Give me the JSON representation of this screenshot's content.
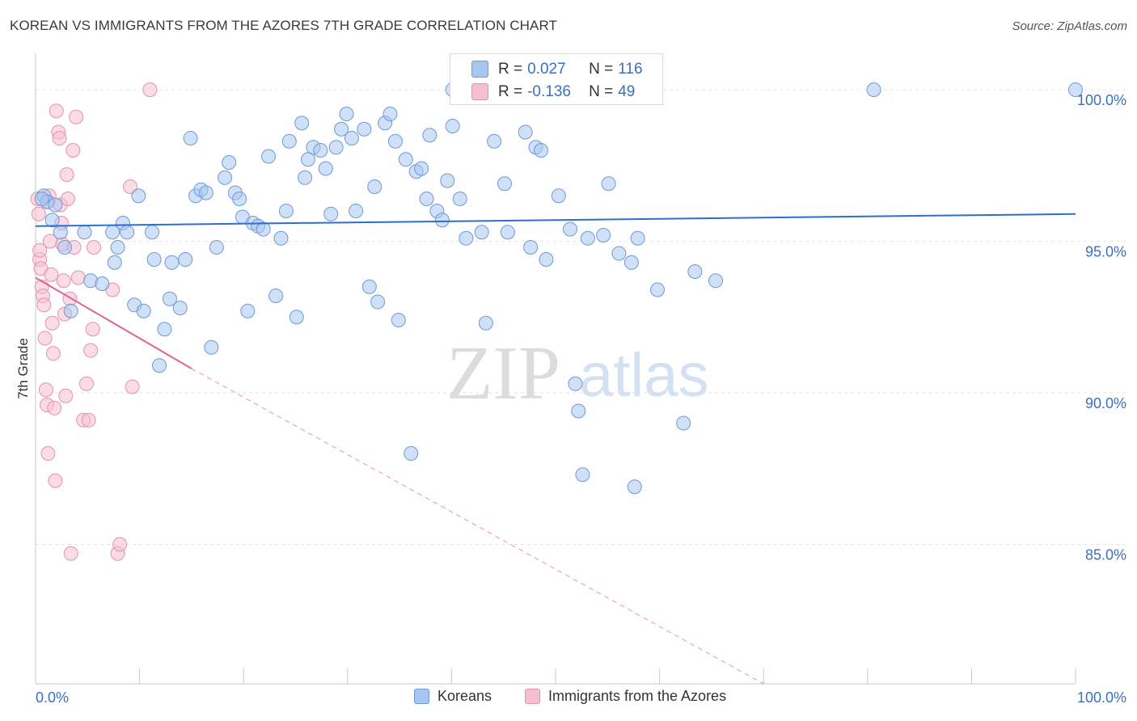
{
  "header": {
    "title": "KOREAN VS IMMIGRANTS FROM THE AZORES 7TH GRADE CORRELATION CHART",
    "source": "Source: ZipAtlas.com"
  },
  "watermark": {
    "zip": "ZIP",
    "atlas": "atlas"
  },
  "stats_legend": {
    "rows": [
      {
        "r_label": "R =",
        "r_value": "0.027",
        "n_label": "N =",
        "n_value": "116",
        "color": "#8fb4e8"
      },
      {
        "r_label": "R =",
        "r_value": "-0.136",
        "n_label": "N =",
        "n_value": "49",
        "color": "#f2a6bf"
      }
    ]
  },
  "bottom_legend": {
    "items": [
      {
        "label": "Koreans",
        "color": "#8fb4e8"
      },
      {
        "label": "Immigrants from the Azores",
        "color": "#f2a6bf"
      }
    ]
  },
  "colors": {
    "blue_fill": "#a9c6ee",
    "blue_stroke": "#6e9ad8",
    "blue_line": "#2f6fc9",
    "pink_fill": "#f6bfd1",
    "pink_stroke": "#e890ae",
    "pink_line": "#e0648e",
    "tick_label": "#3b6fc4",
    "grid": "#e3e3e3"
  },
  "chart_data": {
    "type": "scatter",
    "title": "KOREAN VS IMMIGRANTS FROM THE AZORES 7TH GRADE CORRELATION CHART",
    "xlabel": "",
    "ylabel": "7th Grade",
    "xlim": [
      0,
      100
    ],
    "ylim": [
      80.4,
      101.2
    ],
    "x_tick_labels": [
      "0.0%",
      "100.0%"
    ],
    "y_ticks": [
      85,
      90,
      95,
      100
    ],
    "y_tick_labels": [
      "85.0%",
      "90.0%",
      "95.0%",
      "100.0%"
    ],
    "grid": true,
    "legend_position": "bottom",
    "series": [
      {
        "name": "Koreans",
        "trend": {
          "x": [
            0,
            100
          ],
          "y": [
            95.5,
            95.9
          ],
          "dashed": false
        },
        "points": [
          [
            0.8,
            96.5
          ],
          [
            1.1,
            96.3
          ],
          [
            1.6,
            95.7
          ],
          [
            2.4,
            95.3
          ],
          [
            2.8,
            94.8
          ],
          [
            3.4,
            92.7
          ],
          [
            4.7,
            95.3
          ],
          [
            5.3,
            93.7
          ],
          [
            6.4,
            93.6
          ],
          [
            7.4,
            95.3
          ],
          [
            7.6,
            94.3
          ],
          [
            7.9,
            94.8
          ],
          [
            8.4,
            95.6
          ],
          [
            8.8,
            95.3
          ],
          [
            9.5,
            92.9
          ],
          [
            9.9,
            96.5
          ],
          [
            10.4,
            92.7
          ],
          [
            11.2,
            95.3
          ],
          [
            11.4,
            94.4
          ],
          [
            11.9,
            90.9
          ],
          [
            12.4,
            92.1
          ],
          [
            12.9,
            93.1
          ],
          [
            13.1,
            94.3
          ],
          [
            13.9,
            92.8
          ],
          [
            14.4,
            94.4
          ],
          [
            14.9,
            98.4
          ],
          [
            15.4,
            96.5
          ],
          [
            15.9,
            96.7
          ],
          [
            16.4,
            96.6
          ],
          [
            16.9,
            91.5
          ],
          [
            17.4,
            94.8
          ],
          [
            18.2,
            97.1
          ],
          [
            18.6,
            97.6
          ],
          [
            19.2,
            96.6
          ],
          [
            19.6,
            96.4
          ],
          [
            19.9,
            95.8
          ],
          [
            20.4,
            92.7
          ],
          [
            20.9,
            95.6
          ],
          [
            21.4,
            95.5
          ],
          [
            21.9,
            95.4
          ],
          [
            22.4,
            97.8
          ],
          [
            23.1,
            93.2
          ],
          [
            23.6,
            95.1
          ],
          [
            24.1,
            96.0
          ],
          [
            24.4,
            98.3
          ],
          [
            25.1,
            92.5
          ],
          [
            25.6,
            98.9
          ],
          [
            25.9,
            97.1
          ],
          [
            26.2,
            97.7
          ],
          [
            26.7,
            98.1
          ],
          [
            27.4,
            98.0
          ],
          [
            27.9,
            97.4
          ],
          [
            28.4,
            95.9
          ],
          [
            28.9,
            98.1
          ],
          [
            29.4,
            98.7
          ],
          [
            29.9,
            99.2
          ],
          [
            30.4,
            98.4
          ],
          [
            30.8,
            96.0
          ],
          [
            31.6,
            98.7
          ],
          [
            32.1,
            93.5
          ],
          [
            32.6,
            96.8
          ],
          [
            32.9,
            93.0
          ],
          [
            33.6,
            98.9
          ],
          [
            34.1,
            99.2
          ],
          [
            34.6,
            98.3
          ],
          [
            34.9,
            92.4
          ],
          [
            35.6,
            97.7
          ],
          [
            36.1,
            88.0
          ],
          [
            36.6,
            97.3
          ],
          [
            37.1,
            97.4
          ],
          [
            37.6,
            96.4
          ],
          [
            37.9,
            98.5
          ],
          [
            38.6,
            96.0
          ],
          [
            39.1,
            95.7
          ],
          [
            39.6,
            97.0
          ],
          [
            40.1,
            98.8
          ],
          [
            40.8,
            96.4
          ],
          [
            41.4,
            95.1
          ],
          [
            42.9,
            95.3
          ],
          [
            43.3,
            92.3
          ],
          [
            44.1,
            98.3
          ],
          [
            45.1,
            96.9
          ],
          [
            45.4,
            95.3
          ],
          [
            47.1,
            98.6
          ],
          [
            47.6,
            94.8
          ],
          [
            48.1,
            98.1
          ],
          [
            48.6,
            98.0
          ],
          [
            49.1,
            94.4
          ],
          [
            50.3,
            96.5
          ],
          [
            51.4,
            95.4
          ],
          [
            51.9,
            90.3
          ],
          [
            52.2,
            89.4
          ],
          [
            52.6,
            87.3
          ],
          [
            53.1,
            95.1
          ],
          [
            54.6,
            95.2
          ],
          [
            55.1,
            96.9
          ],
          [
            56.1,
            94.6
          ],
          [
            57.3,
            94.3
          ],
          [
            57.6,
            86.9
          ],
          [
            57.9,
            95.1
          ],
          [
            59.8,
            93.4
          ],
          [
            62.3,
            89.0
          ],
          [
            63.4,
            94.0
          ],
          [
            65.4,
            93.7
          ],
          [
            80.6,
            100.0
          ],
          [
            100.0,
            100.0
          ],
          [
            40.1,
            100.0
          ],
          [
            0.6,
            96.4
          ],
          [
            1.9,
            96.2
          ]
        ]
      },
      {
        "name": "Immigrants from the Azores",
        "trend": {
          "x": [
            0,
            15
          ],
          "y": [
            93.8,
            90.8
          ],
          "dashed_extension_to": [
            70,
            80.4
          ]
        },
        "points": [
          [
            0.2,
            96.4
          ],
          [
            0.3,
            95.9
          ],
          [
            0.4,
            94.4
          ],
          [
            0.5,
            94.1
          ],
          [
            0.6,
            93.5
          ],
          [
            0.7,
            93.2
          ],
          [
            0.8,
            92.9
          ],
          [
            0.9,
            91.8
          ],
          [
            1.0,
            90.1
          ],
          [
            1.1,
            89.6
          ],
          [
            1.2,
            88.0
          ],
          [
            1.3,
            96.5
          ],
          [
            1.4,
            95.0
          ],
          [
            1.5,
            93.9
          ],
          [
            1.6,
            92.3
          ],
          [
            1.7,
            91.3
          ],
          [
            1.8,
            89.5
          ],
          [
            1.9,
            87.1
          ],
          [
            2.0,
            99.3
          ],
          [
            2.2,
            98.6
          ],
          [
            2.3,
            98.4
          ],
          [
            2.4,
            96.2
          ],
          [
            2.5,
            95.6
          ],
          [
            2.6,
            94.9
          ],
          [
            2.7,
            93.7
          ],
          [
            2.8,
            92.6
          ],
          [
            2.9,
            89.9
          ],
          [
            3.0,
            97.2
          ],
          [
            3.1,
            96.4
          ],
          [
            3.3,
            93.1
          ],
          [
            3.4,
            84.7
          ],
          [
            3.6,
            98.0
          ],
          [
            3.7,
            94.8
          ],
          [
            3.9,
            99.1
          ],
          [
            4.1,
            93.8
          ],
          [
            4.6,
            89.1
          ],
          [
            4.9,
            90.3
          ],
          [
            5.1,
            89.1
          ],
          [
            5.3,
            91.4
          ],
          [
            5.5,
            92.1
          ],
          [
            5.6,
            94.8
          ],
          [
            7.4,
            93.4
          ],
          [
            7.9,
            84.7
          ],
          [
            8.1,
            85.0
          ],
          [
            9.1,
            96.8
          ],
          [
            9.3,
            90.2
          ],
          [
            11.0,
            100.0
          ],
          [
            0.4,
            94.7
          ],
          [
            1.2,
            96.3
          ]
        ]
      }
    ]
  }
}
